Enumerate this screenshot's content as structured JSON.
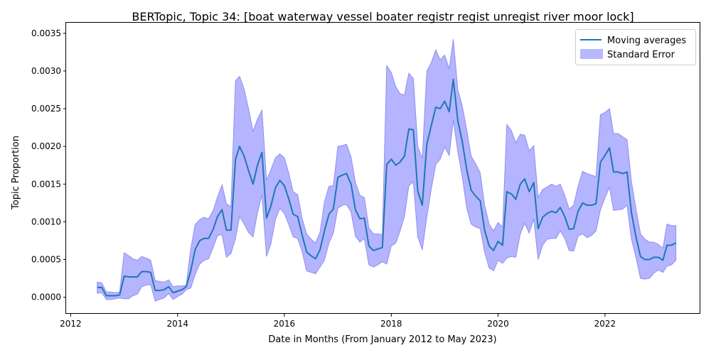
{
  "chart_data": {
    "type": "line",
    "title": "BERTopic, Topic 34: [boat waterway vessel boater registr regist unregist river moor lock]",
    "xlabel": "Date in Months (From January 2012 to May 2023)",
    "ylabel": "Topic Proportion",
    "xlim": [
      "2011-12-01",
      "2023-10-15"
    ],
    "ylim": [
      -0.00022,
      0.00364
    ],
    "x_ticks": [
      "2012-01-01",
      "2014-01-01",
      "2016-01-01",
      "2018-01-01",
      "2020-01-01",
      "2022-01-01"
    ],
    "x_tick_labels": [
      "2012",
      "2014",
      "2016",
      "2018",
      "2020",
      "2022"
    ],
    "y_ticks": [
      0.0,
      0.0005,
      0.001,
      0.0015,
      0.002,
      0.0025,
      0.003,
      0.0035
    ],
    "y_tick_labels": [
      "0.0000",
      "0.0005",
      "0.0010",
      "0.0015",
      "0.0020",
      "0.0025",
      "0.0030",
      "0.0035"
    ],
    "grid": false,
    "legend_position": "top-right",
    "legend": [
      {
        "label": "Moving averages",
        "kind": "line",
        "color": "#1f77b4"
      },
      {
        "label": "Standard Error",
        "kind": "patch",
        "color": "#b0b0ff"
      }
    ],
    "series": [
      {
        "name": "Moving averages",
        "color": "#1f77b4",
        "x": [
          "2012-07",
          "2012-08",
          "2012-09",
          "2012-10",
          "2012-11",
          "2012-12",
          "2013-01",
          "2013-02",
          "2013-03",
          "2013-04",
          "2013-05",
          "2013-06",
          "2013-07",
          "2013-08",
          "2013-09",
          "2013-10",
          "2013-11",
          "2013-12",
          "2014-01",
          "2014-02",
          "2014-03",
          "2014-04",
          "2014-05",
          "2014-06",
          "2014-07",
          "2014-08",
          "2014-09",
          "2014-10",
          "2014-11",
          "2014-12",
          "2015-01",
          "2015-02",
          "2015-03",
          "2015-04",
          "2015-05",
          "2015-06",
          "2015-07",
          "2015-08",
          "2015-09",
          "2015-10",
          "2015-11",
          "2015-12",
          "2016-01",
          "2016-02",
          "2016-03",
          "2016-04",
          "2016-05",
          "2016-06",
          "2016-07",
          "2016-08",
          "2016-09",
          "2016-10",
          "2016-11",
          "2016-12",
          "2017-01",
          "2017-02",
          "2017-03",
          "2017-04",
          "2017-05",
          "2017-06",
          "2017-07",
          "2017-08",
          "2017-09",
          "2017-10",
          "2017-11",
          "2017-12",
          "2018-01",
          "2018-02",
          "2018-03",
          "2018-04",
          "2018-05",
          "2018-06",
          "2018-07",
          "2018-08",
          "2018-09",
          "2018-10",
          "2018-11",
          "2018-12",
          "2019-01",
          "2019-02",
          "2019-03",
          "2019-04",
          "2019-05",
          "2019-06",
          "2019-07",
          "2019-08",
          "2019-09",
          "2019-10",
          "2019-11",
          "2019-12",
          "2020-01",
          "2020-02",
          "2020-03",
          "2020-04",
          "2020-05",
          "2020-06",
          "2020-07",
          "2020-08",
          "2020-09",
          "2020-10",
          "2020-11",
          "2020-12",
          "2021-01",
          "2021-02",
          "2021-03",
          "2021-04",
          "2021-05",
          "2021-06",
          "2021-07",
          "2021-08",
          "2021-09",
          "2021-10",
          "2021-11",
          "2021-12",
          "2022-01",
          "2022-02",
          "2022-03",
          "2022-04",
          "2022-05",
          "2022-06",
          "2022-07",
          "2022-08",
          "2022-09",
          "2022-10",
          "2022-11",
          "2022-12",
          "2023-01",
          "2023-02",
          "2023-03",
          "2023-04",
          "2023-05"
        ],
        "values": [
          0.00013,
          0.00013,
          2e-05,
          2e-05,
          2e-05,
          3e-05,
          0.00028,
          0.00027,
          0.00027,
          0.00027,
          0.00034,
          0.00034,
          0.00033,
          9e-05,
          9e-05,
          0.0001,
          0.00014,
          6e-05,
          8e-05,
          0.0001,
          0.00014,
          0.00035,
          0.00063,
          0.00075,
          0.00078,
          0.00078,
          0.0009,
          0.00107,
          0.00116,
          0.00089,
          0.00089,
          0.00183,
          0.002,
          0.00187,
          0.00168,
          0.0015,
          0.00175,
          0.00192,
          0.00105,
          0.00121,
          0.00145,
          0.00155,
          0.00148,
          0.0013,
          0.0011,
          0.00107,
          0.00083,
          0.0006,
          0.00055,
          0.00051,
          0.00063,
          0.00088,
          0.0011,
          0.00117,
          0.00159,
          0.00162,
          0.00164,
          0.0015,
          0.00116,
          0.00104,
          0.00105,
          0.00068,
          0.00062,
          0.00064,
          0.00066,
          0.00176,
          0.00183,
          0.00175,
          0.00179,
          0.00187,
          0.00223,
          0.00222,
          0.00141,
          0.00122,
          0.00203,
          0.00227,
          0.00252,
          0.0025,
          0.0026,
          0.00246,
          0.00289,
          0.00234,
          0.00207,
          0.00169,
          0.00142,
          0.00134,
          0.00128,
          0.00089,
          0.00068,
          0.00062,
          0.00074,
          0.00069,
          0.0014,
          0.00137,
          0.0013,
          0.0015,
          0.00157,
          0.0014,
          0.00152,
          0.00091,
          0.00106,
          0.00111,
          0.00114,
          0.00112,
          0.00119,
          0.00107,
          0.0009,
          0.00091,
          0.00114,
          0.00125,
          0.00122,
          0.00122,
          0.00124,
          0.00179,
          0.00188,
          0.00198,
          0.00166,
          0.00166,
          0.00164,
          0.00166,
          0.00112,
          0.0008,
          0.00054,
          0.0005,
          0.0005,
          0.00053,
          0.00053,
          0.00049,
          0.00069,
          0.00069,
          0.00072
        ]
      },
      {
        "name": "Standard Error",
        "color": "#b0b0ff",
        "kind": "band",
        "upper": [
          0.0002,
          0.00019,
          7e-05,
          7e-05,
          6e-05,
          7e-05,
          0.00059,
          0.00055,
          0.00051,
          0.00049,
          0.00054,
          0.00052,
          0.00049,
          0.00022,
          0.00021,
          0.0002,
          0.00023,
          0.00014,
          0.00015,
          0.00015,
          0.00016,
          0.00064,
          0.00096,
          0.00103,
          0.00106,
          0.00104,
          0.00115,
          0.00133,
          0.00149,
          0.00124,
          0.0012,
          0.00287,
          0.00293,
          0.00276,
          0.0025,
          0.0022,
          0.00236,
          0.00248,
          0.00155,
          0.00169,
          0.00185,
          0.0019,
          0.00185,
          0.00164,
          0.0014,
          0.00136,
          0.00105,
          0.00084,
          0.00077,
          0.00072,
          0.00086,
          0.00126,
          0.00147,
          0.00148,
          0.002,
          0.00201,
          0.00203,
          0.00186,
          0.00152,
          0.00135,
          0.00132,
          0.00092,
          0.00084,
          0.00084,
          0.00083,
          0.00307,
          0.00298,
          0.00279,
          0.0027,
          0.00268,
          0.00297,
          0.0029,
          0.002,
          0.00184,
          0.003,
          0.00311,
          0.00328,
          0.00315,
          0.00321,
          0.00303,
          0.00342,
          0.00275,
          0.00254,
          0.00222,
          0.00187,
          0.00177,
          0.00165,
          0.00122,
          0.00097,
          0.00088,
          0.00099,
          0.00093,
          0.00229,
          0.00221,
          0.00205,
          0.00216,
          0.00215,
          0.00194,
          0.00201,
          0.00132,
          0.00143,
          0.00146,
          0.0015,
          0.00147,
          0.0015,
          0.00135,
          0.00117,
          0.00122,
          0.00147,
          0.00167,
          0.00164,
          0.00162,
          0.0016,
          0.00242,
          0.00245,
          0.0025,
          0.00217,
          0.00217,
          0.00213,
          0.00209,
          0.00153,
          0.00117,
          0.00084,
          0.00077,
          0.00073,
          0.00073,
          0.0007,
          0.00065,
          0.00097,
          0.00095,
          0.00095
        ],
        "lower": [
          5e-05,
          6e-05,
          -3e-05,
          -3e-05,
          -2e-05,
          -1e-05,
          -2e-05,
          -2e-05,
          2e-05,
          4e-05,
          0.00014,
          0.00016,
          0.00017,
          -5e-05,
          -3e-05,
          -1e-05,
          5e-05,
          -3e-05,
          1e-05,
          4e-05,
          0.0001,
          0.00012,
          0.0003,
          0.00044,
          0.00049,
          0.00051,
          0.00066,
          0.00082,
          0.00083,
          0.00053,
          0.00058,
          0.00078,
          0.00107,
          0.00097,
          0.00086,
          0.0008,
          0.00112,
          0.00136,
          0.00054,
          0.00071,
          0.00103,
          0.00118,
          0.00111,
          0.00096,
          0.0008,
          0.00078,
          0.00061,
          0.00035,
          0.00033,
          0.00031,
          0.0004,
          0.00049,
          0.00072,
          0.00085,
          0.00118,
          0.00122,
          0.00123,
          0.00113,
          0.00081,
          0.00073,
          0.00078,
          0.00043,
          0.0004,
          0.00043,
          0.00047,
          0.00044,
          0.00068,
          0.00072,
          0.00087,
          0.00107,
          0.00148,
          0.00153,
          0.0008,
          0.00063,
          0.00106,
          0.00143,
          0.00176,
          0.00183,
          0.00199,
          0.00188,
          0.00235,
          0.00193,
          0.0016,
          0.00118,
          0.00097,
          0.00093,
          0.00091,
          0.0006,
          0.00039,
          0.00035,
          0.00049,
          0.00045,
          0.00052,
          0.00054,
          0.00053,
          0.00084,
          0.00098,
          0.00085,
          0.00104,
          0.0005,
          0.00069,
          0.00077,
          0.00078,
          0.00078,
          0.00088,
          0.00078,
          0.00062,
          0.00061,
          0.00081,
          0.00084,
          0.00079,
          0.00082,
          0.00088,
          0.00116,
          0.00132,
          0.00146,
          0.00115,
          0.00116,
          0.00117,
          0.00122,
          0.00077,
          0.00053,
          0.00025,
          0.00024,
          0.00025,
          0.00032,
          0.00036,
          0.00033,
          0.00041,
          0.00043,
          0.00049
        ]
      }
    ]
  }
}
